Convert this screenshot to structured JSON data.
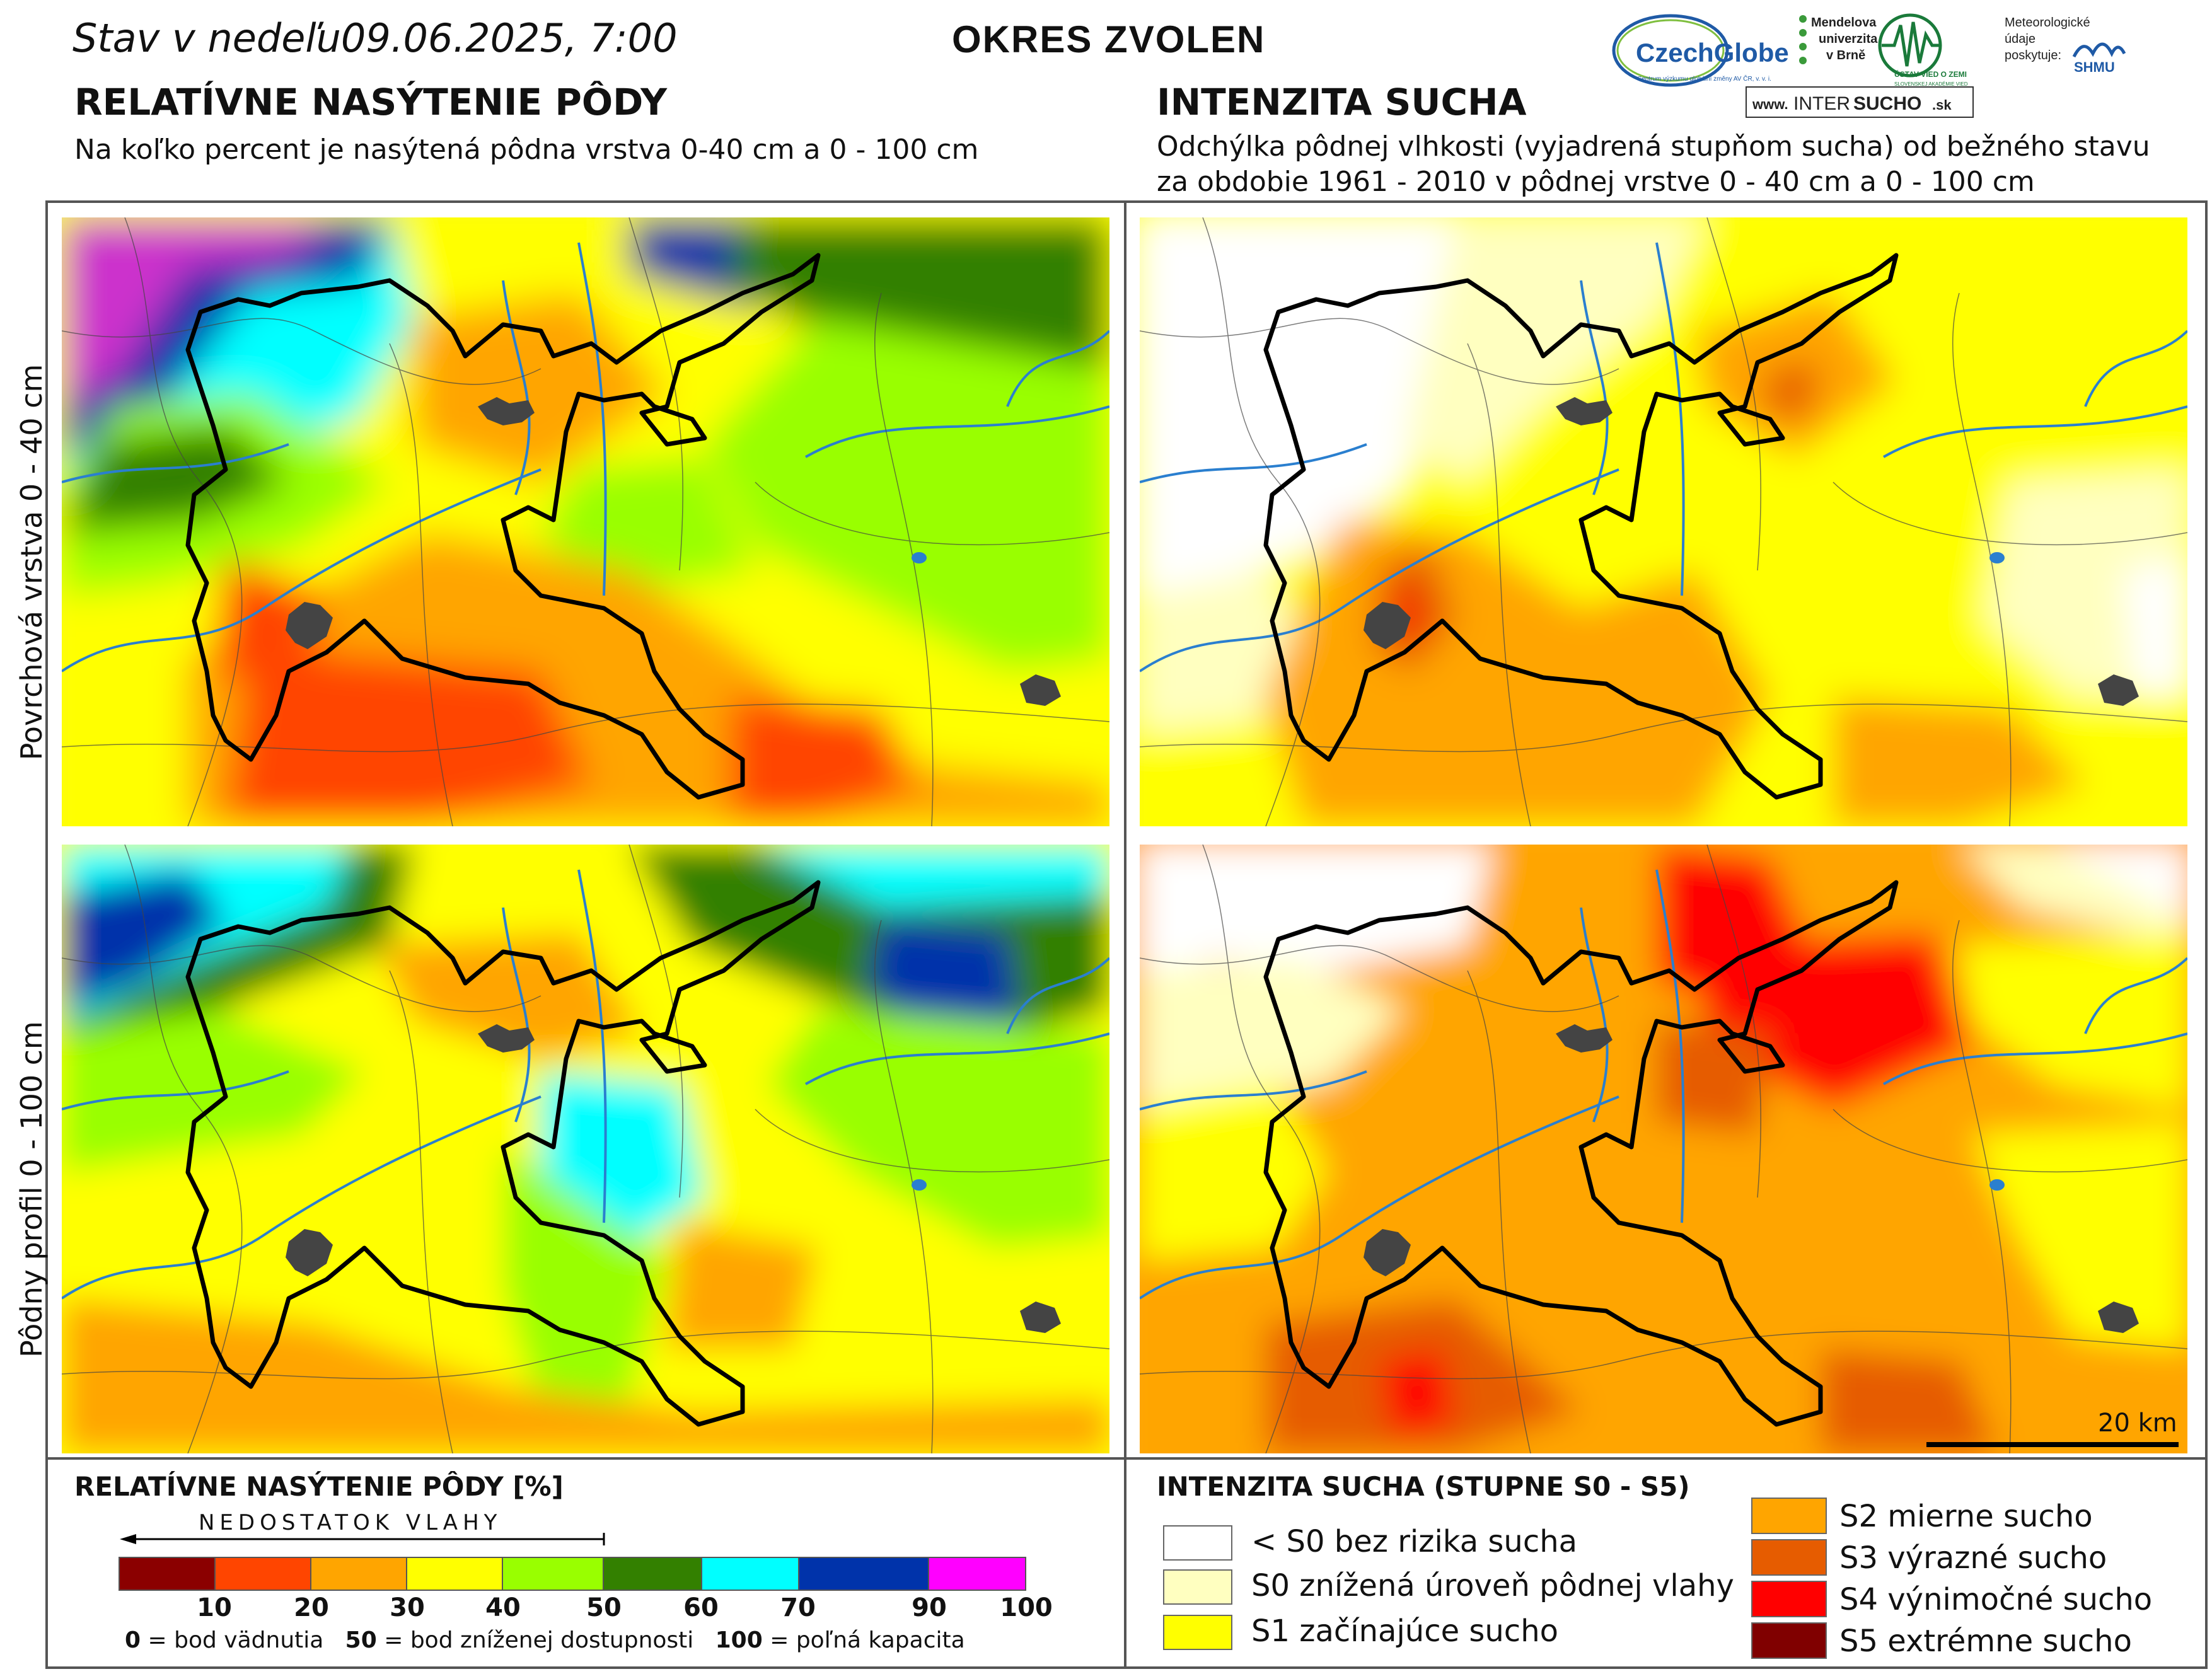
{
  "header": {
    "stav_label": "Stav v nedeľu",
    "datetime": "09.06.2025, 7:00",
    "district": "OKRES  ZVOLEN"
  },
  "logos": {
    "czechglobe": "CzechGlobe",
    "czechglobe_sub": "Centrum výzkumu globální změny AV ČR, v. v. i.",
    "mendelu_line1": "Mendelova",
    "mendelu_line2": "univerzita",
    "mendelu_line3": "v Brně",
    "ustav": "ÚSTAV VIED O ZEMI",
    "ustav_sub": "SLOVENSKEJ AKADÉMIE VIED",
    "meteo_line1": "Meteorologické",
    "meteo_line2": "údaje",
    "meteo_line3": "poskytuje:",
    "shmu": "SHMU",
    "intersucho_prefix": "www.",
    "intersucho_inter": "INTER",
    "intersucho_sucho": "SUCHO",
    "intersucho_suffix": ".sk"
  },
  "left_section": {
    "title": "RELATÍVNE NASÝTENIE PÔDY",
    "subtitle": "Na koľko percent je nasýtená pôdna vrstva 0-40 cm a 0 - 100 cm"
  },
  "right_section": {
    "title": "INTENZITA SUCHA",
    "subtitle_line1": "Odchýlka pôdnej vlhkosti (vyjadrená stupňom sucha) od bežného stavu",
    "subtitle_line2": "za obdobie 1961 - 2010 v pôdnej vrstve 0 - 40 cm a 0 - 100 cm"
  },
  "row_labels": {
    "top": "Povrchová vrstva 0 - 40 cm",
    "bottom": "Pôdny profil 0 - 100 cm"
  },
  "scale_bar": {
    "label": "20 km"
  },
  "legend_left": {
    "title": "RELATÍVNE NASÝTENIE PÔDY [%]",
    "arrow_label": "NEDOSTATOK VLAHY",
    "colors": [
      "#8b0000",
      "#ff4500",
      "#ffa500",
      "#ffff00",
      "#99ff00",
      "#338000",
      "#00ffff",
      "#0033aa",
      "#ff00ff"
    ],
    "ticks": [
      "10",
      "20",
      "30",
      "40",
      "50",
      "60",
      "70",
      "90",
      "100"
    ],
    "footnote_0": "0",
    "footnote_0_text": " = bod vädnutia   ",
    "footnote_50": "50",
    "footnote_50_text": " = bod zníženej dostupnosti   ",
    "footnote_100": "100",
    "footnote_100_text": " = poľná kapacita"
  },
  "legend_right": {
    "title": "INTENZITA SUCHA (STUPNE S0 - S5)",
    "items": [
      {
        "label": "< S0 bez rizika sucha",
        "color": "#ffffff"
      },
      {
        "label": "S0 znížená úroveň pôdnej vlahy",
        "color": "#ffffc0"
      },
      {
        "label": "S1 začínajúce sucho",
        "color": "#ffff00"
      },
      {
        "label": "S2 mierne sucho",
        "color": "#ffa500"
      },
      {
        "label": "S3 výrazné sucho",
        "color": "#e65c00"
      },
      {
        "label": "S4 výnimočné sucho",
        "color": "#ff0000"
      },
      {
        "label": "S5 extrémne sucho",
        "color": "#800000"
      }
    ]
  }
}
